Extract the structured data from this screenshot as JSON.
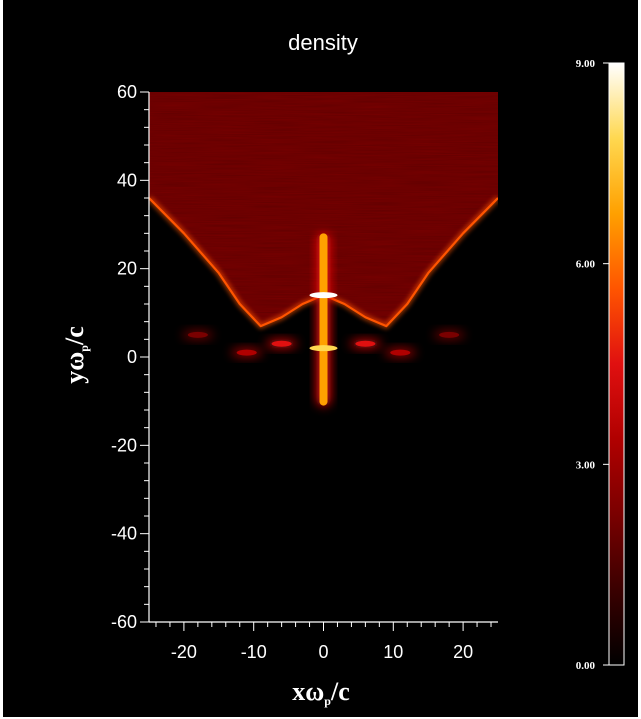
{
  "chart_data": {
    "type": "heatmap",
    "title": "density",
    "xlabel": {
      "main": "xω",
      "sub": "p",
      "tail": "/c"
    },
    "ylabel": {
      "main": "yω",
      "sub": "p",
      "tail": "/c"
    },
    "xlim": [
      -25,
      25
    ],
    "ylim": [
      -60,
      60
    ],
    "x_ticks": [
      -20,
      -10,
      0,
      10,
      20
    ],
    "x_tick_labels": [
      "-20",
      "-10",
      "0",
      "10",
      "20"
    ],
    "y_ticks": [
      60,
      40,
      20,
      0,
      -20,
      -40,
      -60
    ],
    "y_tick_labels": [
      "60",
      "40",
      "20",
      "0",
      "-20",
      "-40",
      "-60"
    ],
    "colorbar": {
      "range": [
        0,
        9
      ],
      "ticks": [
        9,
        6,
        3,
        0
      ],
      "tick_labels": [
        "9.00",
        "6.00",
        "3.00",
        "0.00"
      ],
      "colors": [
        "#000000",
        "#3a0000",
        "#7a0000",
        "#b00000",
        "#e01010",
        "#ff5500",
        "#ffa000",
        "#ffd850",
        "#ffffff"
      ]
    },
    "field": {
      "background_density": 0,
      "bulk_density": 2,
      "edge_density": 6,
      "upper_boundary": [
        {
          "x": -25,
          "y": 36
        },
        {
          "x": -20,
          "y": 28
        },
        {
          "x": -15,
          "y": 19
        },
        {
          "x": -12,
          "y": 12
        },
        {
          "x": -9,
          "y": 7
        },
        {
          "x": -6,
          "y": 9
        },
        {
          "x": -3,
          "y": 12
        },
        {
          "x": 0,
          "y": 14
        },
        {
          "x": 3,
          "y": 12
        },
        {
          "x": 6,
          "y": 9
        },
        {
          "x": 9,
          "y": 7
        },
        {
          "x": 12,
          "y": 12
        },
        {
          "x": 15,
          "y": 19
        },
        {
          "x": 20,
          "y": 28
        },
        {
          "x": 25,
          "y": 36
        }
      ],
      "central_jet": {
        "x": 0,
        "y_min": -11,
        "y_max": 28,
        "density": 7
      },
      "filament_peaks": [
        {
          "x": 0,
          "y": 14,
          "density": 9
        },
        {
          "x": 0,
          "y": 2,
          "density": 8
        }
      ],
      "arms": [
        {
          "x": -11,
          "y": 1,
          "density": 3
        },
        {
          "x": -6,
          "y": 3,
          "density": 4
        },
        {
          "x": 6,
          "y": 3,
          "density": 4
        },
        {
          "x": 11,
          "y": 1,
          "density": 3
        },
        {
          "x": -18,
          "y": 5,
          "density": 2
        },
        {
          "x": 18,
          "y": 5,
          "density": 2
        }
      ]
    }
  }
}
